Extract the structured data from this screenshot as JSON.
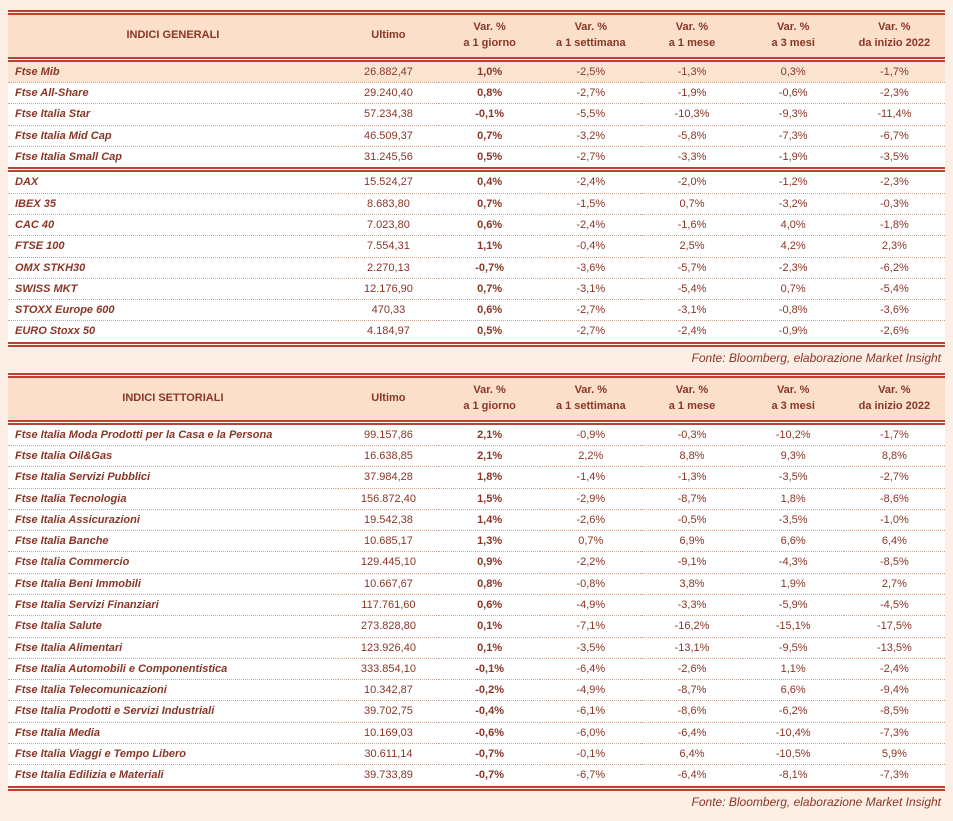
{
  "colors": {
    "page_bg": "#fdefe5",
    "table_bg": "#ffffff",
    "header_bg": "#fbdfca",
    "highlight_bg": "#fce4d3",
    "rule": "#bb4430",
    "text": "#8a3626",
    "row_line": "#c9a795"
  },
  "tables": [
    {
      "title": "INDICI GENERALI",
      "ultimo_label": "Ultimo",
      "var_headers": [
        {
          "line1": "Var. %",
          "line2": "a 1 giorno"
        },
        {
          "line1": "Var. %",
          "line2": "a 1 settimana"
        },
        {
          "line1": "Var. %",
          "line2": "a 1 mese"
        },
        {
          "line1": "Var. %",
          "line2": "a 3 mesi"
        },
        {
          "line1": "Var. %",
          "line2": "da inizio 2022"
        }
      ],
      "groups": [
        {
          "rows": [
            {
              "name": "Ftse Mib",
              "ultimo": "26.882,47",
              "vars": [
                "1,0%",
                "-2,5%",
                "-1,3%",
                "0,3%",
                "-1,7%"
              ],
              "highlight": true
            },
            {
              "name": "Ftse All-Share",
              "ultimo": "29.240,40",
              "vars": [
                "0,8%",
                "-2,7%",
                "-1,9%",
                "-0,6%",
                "-2,3%"
              ]
            },
            {
              "name": "Ftse Italia Star",
              "ultimo": "57.234,38",
              "vars": [
                "-0,1%",
                "-5,5%",
                "-10,3%",
                "-9,3%",
                "-11,4%"
              ]
            },
            {
              "name": "Ftse Italia Mid Cap",
              "ultimo": "46.509,37",
              "vars": [
                "0,7%",
                "-3,2%",
                "-5,8%",
                "-7,3%",
                "-6,7%"
              ]
            },
            {
              "name": "Ftse Italia Small Cap",
              "ultimo": "31.245,56",
              "vars": [
                "0,5%",
                "-2,7%",
                "-3,3%",
                "-1,9%",
                "-3,5%"
              ]
            }
          ]
        },
        {
          "rows": [
            {
              "name": "DAX",
              "ultimo": "15.524,27",
              "vars": [
                "0,4%",
                "-2,4%",
                "-2,0%",
                "-1,2%",
                "-2,3%"
              ]
            },
            {
              "name": "IBEX 35",
              "ultimo": "8.683,80",
              "vars": [
                "0,7%",
                "-1,5%",
                "0,7%",
                "-3,2%",
                "-0,3%"
              ]
            },
            {
              "name": "CAC 40",
              "ultimo": "7.023,80",
              "vars": [
                "0,6%",
                "-2,4%",
                "-1,6%",
                "4,0%",
                "-1,8%"
              ]
            },
            {
              "name": "FTSE 100",
              "ultimo": "7.554,31",
              "vars": [
                "1,1%",
                "-0,4%",
                "2,5%",
                "4,2%",
                "2,3%"
              ]
            },
            {
              "name": "OMX STKH30",
              "ultimo": "2.270,13",
              "vars": [
                "-0,7%",
                "-3,6%",
                "-5,7%",
                "-2,3%",
                "-6,2%"
              ]
            },
            {
              "name": "SWISS MKT",
              "ultimo": "12.176,90",
              "vars": [
                "0,7%",
                "-3,1%",
                "-5,4%",
                "0,7%",
                "-5,4%"
              ]
            },
            {
              "name": "STOXX Europe 600",
              "ultimo": "470,33",
              "vars": [
                "0,6%",
                "-2,7%",
                "-3,1%",
                "-0,8%",
                "-3,6%"
              ]
            },
            {
              "name": "EURO Stoxx 50",
              "ultimo": "4.184,97",
              "vars": [
                "0,5%",
                "-2,7%",
                "-2,4%",
                "-0,9%",
                "-2,6%"
              ]
            }
          ]
        }
      ],
      "source": "Fonte: Bloomberg, elaborazione Market Insight"
    },
    {
      "title": "INDICI SETTORIALI",
      "ultimo_label": "Ultimo",
      "var_headers": [
        {
          "line1": "Var. %",
          "line2": "a 1 giorno"
        },
        {
          "line1": "Var. %",
          "line2": "a 1 settimana"
        },
        {
          "line1": "Var. %",
          "line2": "a 1 mese"
        },
        {
          "line1": "Var. %",
          "line2": "a 3 mesi"
        },
        {
          "line1": "Var. %",
          "line2": "da inizio 2022"
        }
      ],
      "groups": [
        {
          "rows": [
            {
              "name": "Ftse Italia Moda Prodotti per la Casa e la Persona",
              "ultimo": "99.157,86",
              "vars": [
                "2,1%",
                "-0,9%",
                "-0,3%",
                "-10,2%",
                "-1,7%"
              ]
            },
            {
              "name": "Ftse Italia Oil&Gas",
              "ultimo": "16.638,85",
              "vars": [
                "2,1%",
                "2,2%",
                "8,8%",
                "9,3%",
                "8,8%"
              ]
            },
            {
              "name": "Ftse Italia Servizi Pubblici",
              "ultimo": "37.984,28",
              "vars": [
                "1,8%",
                "-1,4%",
                "-1,3%",
                "-3,5%",
                "-2,7%"
              ]
            },
            {
              "name": "Ftse Italia Tecnologia",
              "ultimo": "156.872,40",
              "vars": [
                "1,5%",
                "-2,9%",
                "-8,7%",
                "1,8%",
                "-8,6%"
              ]
            },
            {
              "name": "Ftse Italia Assicurazioni",
              "ultimo": "19.542,38",
              "vars": [
                "1,4%",
                "-2,6%",
                "-0,5%",
                "-3,5%",
                "-1,0%"
              ]
            },
            {
              "name": "Ftse Italia Banche",
              "ultimo": "10.685,17",
              "vars": [
                "1,3%",
                "0,7%",
                "6,9%",
                "6,6%",
                "6,4%"
              ]
            },
            {
              "name": "Ftse Italia Commercio",
              "ultimo": "129.445,10",
              "vars": [
                "0,9%",
                "-2,2%",
                "-9,1%",
                "-4,3%",
                "-8,5%"
              ]
            },
            {
              "name": "Ftse Italia Beni Immobili",
              "ultimo": "10.667,67",
              "vars": [
                "0,8%",
                "-0,8%",
                "3,8%",
                "1,9%",
                "2,7%"
              ]
            },
            {
              "name": "Ftse Italia Servizi Finanziari",
              "ultimo": "117.761,60",
              "vars": [
                "0,6%",
                "-4,9%",
                "-3,3%",
                "-5,9%",
                "-4,5%"
              ]
            },
            {
              "name": "Ftse Italia Salute",
              "ultimo": "273.828,80",
              "vars": [
                "0,1%",
                "-7,1%",
                "-16,2%",
                "-15,1%",
                "-17,5%"
              ]
            },
            {
              "name": "Ftse Italia Alimentari",
              "ultimo": "123.926,40",
              "vars": [
                "0,1%",
                "-3,5%",
                "-13,1%",
                "-9,5%",
                "-13,5%"
              ]
            },
            {
              "name": "Ftse Italia Automobili e Componentistica",
              "ultimo": "333.854,10",
              "vars": [
                "-0,1%",
                "-6,4%",
                "-2,6%",
                "1,1%",
                "-2,4%"
              ]
            },
            {
              "name": "Ftse Italia Telecomunicazioni",
              "ultimo": "10.342,87",
              "vars": [
                "-0,2%",
                "-4,9%",
                "-8,7%",
                "6,6%",
                "-9,4%"
              ]
            },
            {
              "name": "Ftse Italia Prodotti e Servizi Industriali",
              "ultimo": "39.702,75",
              "vars": [
                "-0,4%",
                "-6,1%",
                "-8,6%",
                "-6,2%",
                "-8,5%"
              ]
            },
            {
              "name": "Ftse Italia Media",
              "ultimo": "10.169,03",
              "vars": [
                "-0,6%",
                "-6,0%",
                "-6,4%",
                "-10,4%",
                "-7,3%"
              ]
            },
            {
              "name": "Ftse Italia Viaggi e Tempo Libero",
              "ultimo": "30.611,14",
              "vars": [
                "-0,7%",
                "-0,1%",
                "6,4%",
                "-10,5%",
                "5,9%"
              ]
            },
            {
              "name": "Ftse Italia Edilizia e Materiali",
              "ultimo": "39.733,89",
              "vars": [
                "-0,7%",
                "-6,7%",
                "-6,4%",
                "-8,1%",
                "-7,3%"
              ]
            }
          ]
        }
      ],
      "source": "Fonte: Bloomberg, elaborazione Market Insight"
    }
  ]
}
